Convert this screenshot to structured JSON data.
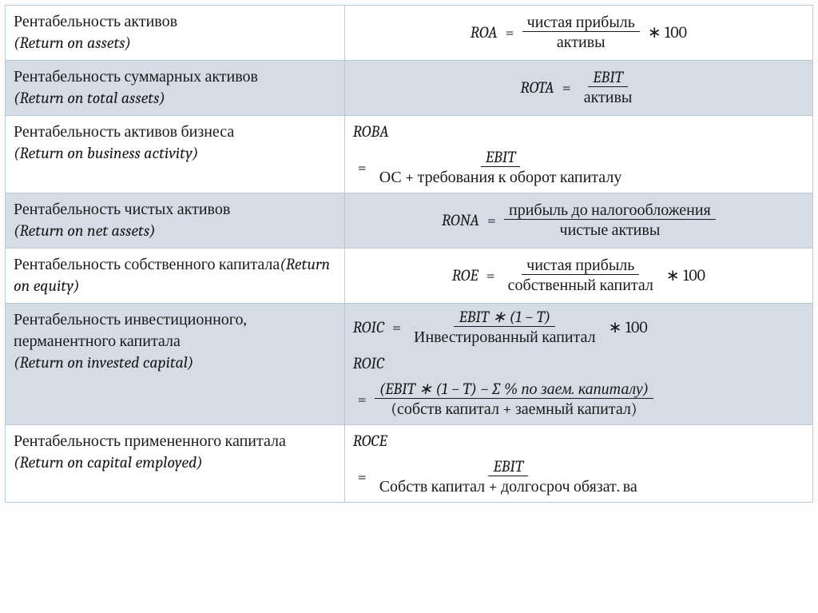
{
  "table": {
    "layout": {
      "column_widths_pct": [
        42,
        58
      ],
      "border_color": "#b9c9da",
      "row_colors": {
        "even": "#ffffff",
        "odd": "#d5dce5"
      },
      "text_color": "#1a1a1a",
      "font_size_pt": 15
    },
    "rows": [
      {
        "id": "roa",
        "bg": "even",
        "term_ru": "Рентабельность активов",
        "term_en": "(Return on assets)",
        "formulas": [
          {
            "lhs": "ROA",
            "num": "чистая прибыль",
            "den": "активы",
            "times100": true,
            "center": true,
            "lhs_inline": true
          }
        ]
      },
      {
        "id": "rota",
        "bg": "odd",
        "term_ru": "Рентабельность суммарных активов",
        "term_en": "(Return on total assets)",
        "formulas": [
          {
            "lhs": "ROTA",
            "num": "EBIT",
            "den": "активы",
            "times100": false,
            "center": true,
            "lhs_inline": true,
            "num_italic": true
          }
        ]
      },
      {
        "id": "roba",
        "bg": "even",
        "term_ru": "Рентабельность активов бизнеса",
        "term_en": "(Return on business activity)",
        "formulas": [
          {
            "lhs": "ROBA",
            "num": "EBIT",
            "den": "ОС + требования к оборот капиталу",
            "times100": false,
            "center": false,
            "lhs_inline": false,
            "num_italic": true
          }
        ]
      },
      {
        "id": "rona",
        "bg": "odd",
        "term_ru": "Рентабельность чистых активов",
        "term_en": "(Return on net assets)",
        "formulas": [
          {
            "lhs": "RONA",
            "num": "прибыль до налогообложения",
            "den": "чистые активы",
            "times100": false,
            "center": true,
            "lhs_inline": true
          }
        ]
      },
      {
        "id": "roe",
        "bg": "even",
        "term_ru": "Рентабельность собственного капитала",
        "term_en": "(Return on equity)",
        "term_inline": true,
        "formulas": [
          {
            "lhs": "ROE",
            "num": "чистая прибыль",
            "den": "собственный капитал",
            "times100": true,
            "center": true,
            "lhs_inline": true
          }
        ]
      },
      {
        "id": "roic",
        "bg": "odd",
        "term_ru": "Рентабельность инвестиционного, перманентного капитала",
        "term_en": "(Return on invested capital)",
        "formulas": [
          {
            "lhs": "ROIC",
            "num": "EBIT ∗ (1 − T)",
            "den": "Инвестированный капитал",
            "times100": true,
            "center": false,
            "lhs_inline": true,
            "num_italic": true
          },
          {
            "lhs": "ROIC",
            "num": "(EBIT ∗ (1 − T) − ∑ % по заем. капиталу)",
            "den": "(собств капитал + заемный капитал)",
            "times100": false,
            "center": false,
            "lhs_inline": false,
            "num_italic": true
          }
        ]
      },
      {
        "id": "roce",
        "bg": "even",
        "term_ru": "Рентабельность примененного капитала",
        "term_en": "(Return on capital employed)",
        "formulas": [
          {
            "lhs": "ROCE",
            "num": "EBIT",
            "den": "Собств капитал + долгосроч обязат. ва",
            "times100": false,
            "center": false,
            "lhs_inline": false,
            "num_italic": true
          }
        ]
      }
    ]
  },
  "strings": {
    "equals": "=",
    "times100": "∗ 100"
  }
}
